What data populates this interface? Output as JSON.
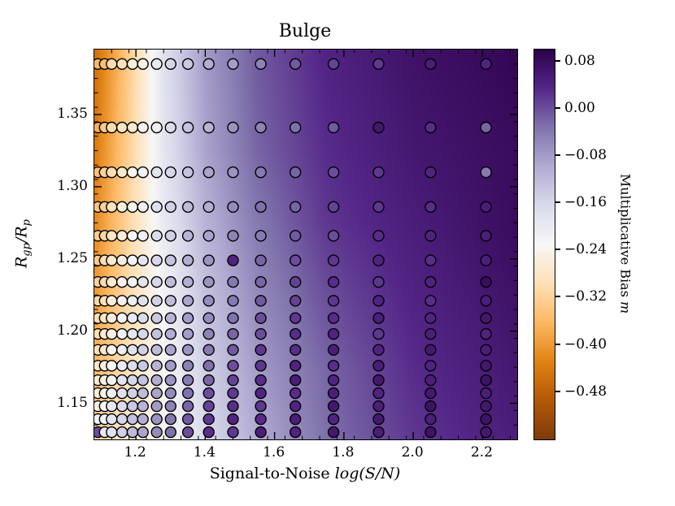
{
  "figure": {
    "title": "Bulge",
    "xlabel": {
      "text": "Signal-to-Noise",
      "math": "log(S/N)"
    },
    "ylabel": {
      "r1": "R",
      "sub1": "gp",
      "sep": "/",
      "r2": "R",
      "sub2": "p"
    },
    "colorbar_label": {
      "text": "Multiplicative Bias",
      "math": "m"
    }
  },
  "chart_data": {
    "type": "scatter",
    "title": "Bulge",
    "xlabel": "Signal-to-Noise log(S/N)",
    "ylabel": "R_gp/R_p",
    "xlim": [
      1.08,
      2.3
    ],
    "ylim": [
      1.125,
      1.395
    ],
    "grid": false,
    "x_ticks": [
      {
        "v": 1.2,
        "label": "1.2"
      },
      {
        "v": 1.4,
        "label": "1.4"
      },
      {
        "v": 1.6,
        "label": "1.6"
      },
      {
        "v": 1.8,
        "label": "1.8"
      },
      {
        "v": 2.0,
        "label": "2.0"
      },
      {
        "v": 2.2,
        "label": "2.2"
      }
    ],
    "y_ticks": [
      {
        "v": 1.15,
        "label": "1.15"
      },
      {
        "v": 1.2,
        "label": "1.20"
      },
      {
        "v": 1.25,
        "label": "1.25"
      },
      {
        "v": 1.3,
        "label": "1.30"
      },
      {
        "v": 1.35,
        "label": "1.35"
      }
    ],
    "x_minor_step": 0.05,
    "y_minor_step": 0.01,
    "colorbar": {
      "label": "Multiplicative Bias m",
      "vmin": -0.56,
      "vmax": 0.1,
      "ticks": [
        {
          "v": 0.08,
          "label": "0.08"
        },
        {
          "v": 0.0,
          "label": "0.00"
        },
        {
          "v": -0.08,
          "label": "−0.08"
        },
        {
          "v": -0.16,
          "label": "−0.16"
        },
        {
          "v": -0.24,
          "label": "−0.24"
        },
        {
          "v": -0.32,
          "label": "−0.32"
        },
        {
          "v": -0.4,
          "label": "−0.40"
        },
        {
          "v": -0.48,
          "label": "−0.48"
        }
      ]
    },
    "colormap": [
      [
        0.0,
        "#7f3b08"
      ],
      [
        0.1,
        "#b35806"
      ],
      [
        0.2,
        "#e08214"
      ],
      [
        0.3,
        "#fdb863"
      ],
      [
        0.4,
        "#fee0b6"
      ],
      [
        0.5,
        "#f7f7f7"
      ],
      [
        0.6,
        "#d8daeb"
      ],
      [
        0.7,
        "#b2abd2"
      ],
      [
        0.8,
        "#8073ac"
      ],
      [
        0.9,
        "#542788"
      ],
      [
        1.0,
        "#2d004b"
      ]
    ],
    "background_grid": {
      "x": [
        1.08,
        1.18,
        1.28,
        1.4,
        1.55,
        1.75,
        2.0,
        2.3
      ],
      "y": [
        1.125,
        1.175,
        1.225,
        1.275,
        1.325,
        1.395
      ],
      "m": [
        [
          -0.31,
          -0.27,
          -0.24,
          -0.17,
          -0.1,
          -0.03,
          0.02,
          0.05
        ],
        [
          -0.36,
          -0.29,
          -0.23,
          -0.15,
          -0.08,
          -0.02,
          0.03,
          0.06
        ],
        [
          -0.4,
          -0.3,
          -0.22,
          -0.13,
          -0.06,
          0.0,
          0.04,
          0.07
        ],
        [
          -0.42,
          -0.31,
          -0.2,
          -0.11,
          -0.04,
          0.02,
          0.05,
          0.08
        ],
        [
          -0.44,
          -0.32,
          -0.19,
          -0.09,
          -0.02,
          0.03,
          0.06,
          0.08
        ],
        [
          -0.46,
          -0.33,
          -0.18,
          -0.08,
          -0.01,
          0.04,
          0.07,
          0.09
        ]
      ]
    },
    "marker": {
      "radius": 6.5,
      "edge_color": "#000000"
    },
    "x_values": [
      1.09,
      1.11,
      1.13,
      1.16,
      1.19,
      1.22,
      1.26,
      1.3,
      1.35,
      1.41,
      1.48,
      1.56,
      1.66,
      1.77,
      1.9,
      2.05,
      2.21
    ],
    "rows": [
      {
        "y": 1.385,
        "m": [
          -0.36,
          -0.35,
          -0.3,
          -0.29,
          -0.26,
          -0.25,
          -0.2,
          -0.16,
          -0.14,
          -0.1,
          -0.08,
          -0.05,
          -0.01,
          0.01,
          0.02,
          0.05,
          0.04
        ]
      },
      {
        "y": 1.341,
        "m": [
          -0.37,
          -0.33,
          -0.3,
          -0.28,
          -0.27,
          -0.22,
          -0.21,
          -0.17,
          -0.13,
          -0.11,
          -0.07,
          -0.05,
          -0.03,
          -0.01,
          0.06,
          0.03,
          -0.02
        ]
      },
      {
        "y": 1.31,
        "m": [
          -0.35,
          -0.32,
          -0.3,
          -0.27,
          -0.24,
          -0.22,
          -0.19,
          -0.16,
          -0.13,
          -0.09,
          -0.07,
          -0.04,
          -0.02,
          0.0,
          0.02,
          0.04,
          -0.04
        ]
      },
      {
        "y": 1.286,
        "m": [
          -0.34,
          -0.32,
          -0.29,
          -0.26,
          -0.24,
          -0.21,
          -0.18,
          -0.15,
          -0.12,
          -0.1,
          -0.06,
          -0.03,
          -0.02,
          0.01,
          0.02,
          0.03,
          0.05
        ]
      },
      {
        "y": 1.266,
        "m": [
          -0.33,
          -0.31,
          -0.28,
          -0.26,
          -0.23,
          -0.21,
          -0.17,
          -0.15,
          -0.11,
          -0.09,
          -0.05,
          -0.04,
          -0.01,
          0.0,
          0.03,
          0.04,
          0.05
        ]
      },
      {
        "y": 1.249,
        "m": [
          -0.33,
          -0.3,
          -0.27,
          -0.25,
          -0.22,
          -0.19,
          -0.16,
          -0.13,
          -0.1,
          -0.07,
          0.04,
          -0.02,
          0.0,
          0.02,
          0.04,
          0.03,
          0.05
        ]
      },
      {
        "y": 1.234,
        "m": [
          -0.32,
          -0.3,
          -0.27,
          -0.24,
          -0.22,
          -0.19,
          -0.16,
          -0.12,
          -0.1,
          -0.07,
          -0.04,
          -0.02,
          0.01,
          0.03,
          0.02,
          0.04,
          0.08
        ]
      },
      {
        "y": 1.221,
        "m": [
          -0.31,
          -0.29,
          -0.26,
          -0.24,
          -0.21,
          -0.18,
          -0.15,
          -0.12,
          -0.09,
          -0.06,
          -0.04,
          -0.01,
          0.01,
          0.02,
          0.04,
          0.03,
          0.05
        ]
      },
      {
        "y": 1.209,
        "m": [
          -0.3,
          -0.28,
          -0.26,
          -0.23,
          -0.2,
          -0.17,
          -0.14,
          -0.11,
          -0.08,
          -0.06,
          -0.03,
          0.0,
          0.02,
          0.03,
          0.05,
          0.04,
          0.06
        ]
      },
      {
        "y": 1.198,
        "m": [
          -0.3,
          -0.27,
          -0.25,
          -0.22,
          -0.19,
          -0.16,
          -0.13,
          -0.1,
          -0.08,
          -0.05,
          -0.02,
          0.0,
          0.03,
          0.04,
          0.02,
          0.05,
          0.04
        ]
      },
      {
        "y": 1.187,
        "m": [
          -0.29,
          -0.27,
          -0.24,
          -0.21,
          -0.18,
          -0.15,
          -0.12,
          -0.09,
          -0.07,
          -0.04,
          -0.01,
          0.02,
          0.03,
          0.05,
          0.04,
          0.06,
          0.05
        ]
      },
      {
        "y": 1.176,
        "m": [
          -0.28,
          -0.26,
          -0.23,
          -0.2,
          -0.17,
          -0.14,
          -0.11,
          -0.08,
          -0.05,
          -0.03,
          0.0,
          0.02,
          0.04,
          0.03,
          0.05,
          0.04,
          0.06
        ]
      },
      {
        "y": 1.166,
        "m": [
          -0.27,
          -0.25,
          -0.22,
          -0.19,
          -0.16,
          -0.13,
          -0.1,
          -0.07,
          -0.04,
          -0.02,
          0.01,
          0.03,
          0.05,
          0.04,
          0.06,
          0.05,
          0.07
        ]
      },
      {
        "y": 1.157,
        "m": [
          -0.26,
          -0.24,
          -0.21,
          -0.18,
          -0.15,
          -0.12,
          -0.09,
          -0.06,
          -0.03,
          0.0,
          0.02,
          0.04,
          0.03,
          0.05,
          0.04,
          0.06,
          0.05
        ]
      },
      {
        "y": 1.148,
        "m": [
          -0.25,
          -0.23,
          -0.2,
          -0.17,
          -0.14,
          -0.11,
          -0.08,
          -0.05,
          -0.02,
          0.01,
          0.03,
          0.02,
          0.04,
          0.06,
          0.05,
          0.07,
          0.06
        ]
      },
      {
        "y": 1.139,
        "m": [
          -0.22,
          -0.22,
          -0.19,
          -0.16,
          -0.13,
          -0.1,
          -0.07,
          -0.04,
          -0.01,
          0.02,
          0.04,
          0.03,
          0.05,
          0.04,
          0.06,
          0.05,
          0.07
        ]
      },
      {
        "y": 1.13,
        "m": [
          0.0,
          -0.2,
          -0.18,
          -0.15,
          -0.12,
          -0.09,
          -0.06,
          -0.03,
          0.0,
          0.03,
          0.02,
          0.05,
          0.04,
          0.06,
          0.05,
          0.07,
          0.06
        ]
      }
    ]
  }
}
